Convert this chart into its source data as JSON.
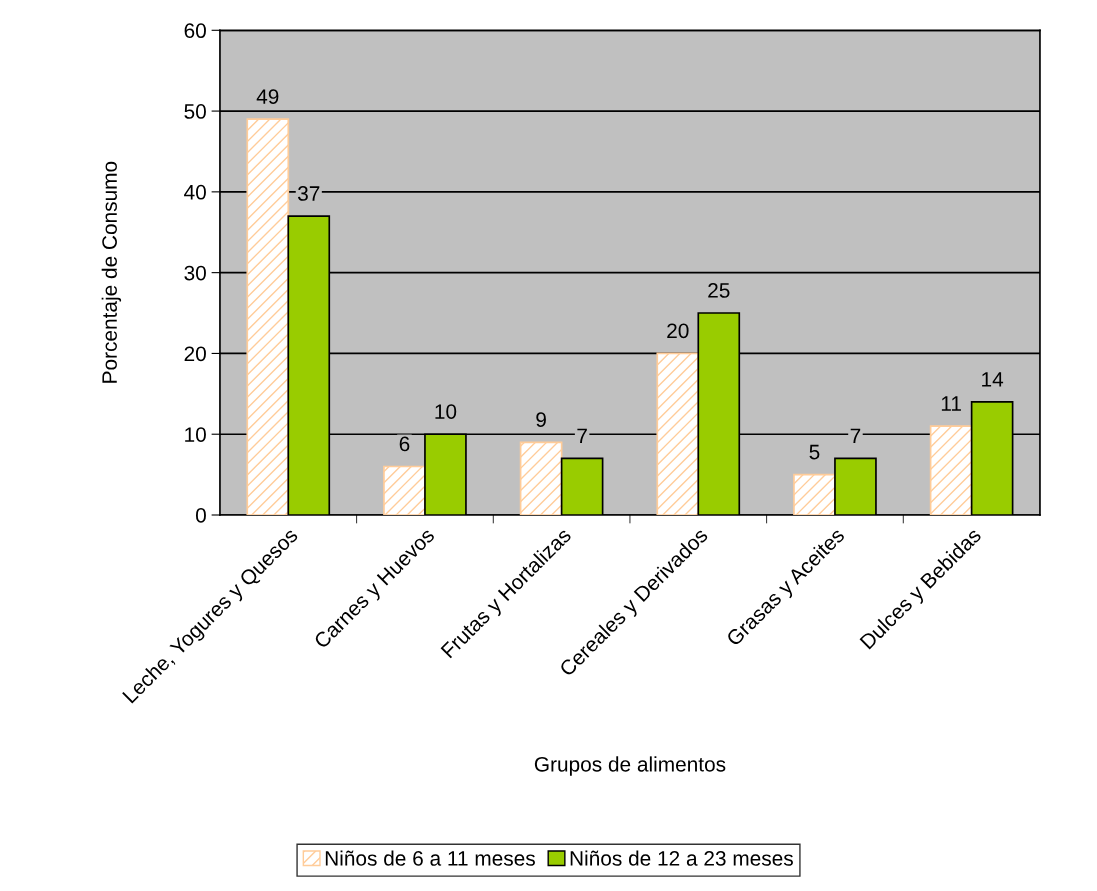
{
  "chart_data": {
    "type": "bar",
    "xlabel": "Grupos de alimentos",
    "ylabel": "Porcentaje de Consumo",
    "categories": [
      "Leche, Yogures y Quesos",
      "Carnes y Huevos",
      "Frutas y Hortalizas",
      "Cereales y Derivados",
      "Grasas y Aceites",
      "Dulces y Bebidas"
    ],
    "series": [
      {
        "name": "Niños de 6 a 11 meses",
        "color": "#ffcc99",
        "values": [
          49,
          6,
          9,
          20,
          5,
          11
        ]
      },
      {
        "name": "Niños de 12 a 23 meses",
        "color": "#99cc00",
        "values": [
          37,
          10,
          7,
          25,
          7,
          14
        ]
      }
    ],
    "ylim": [
      0,
      60
    ],
    "yticks": [
      0,
      10,
      20,
      30,
      40,
      50,
      60
    ],
    "grid": "y",
    "legend": "bottom",
    "data_labels": true
  }
}
